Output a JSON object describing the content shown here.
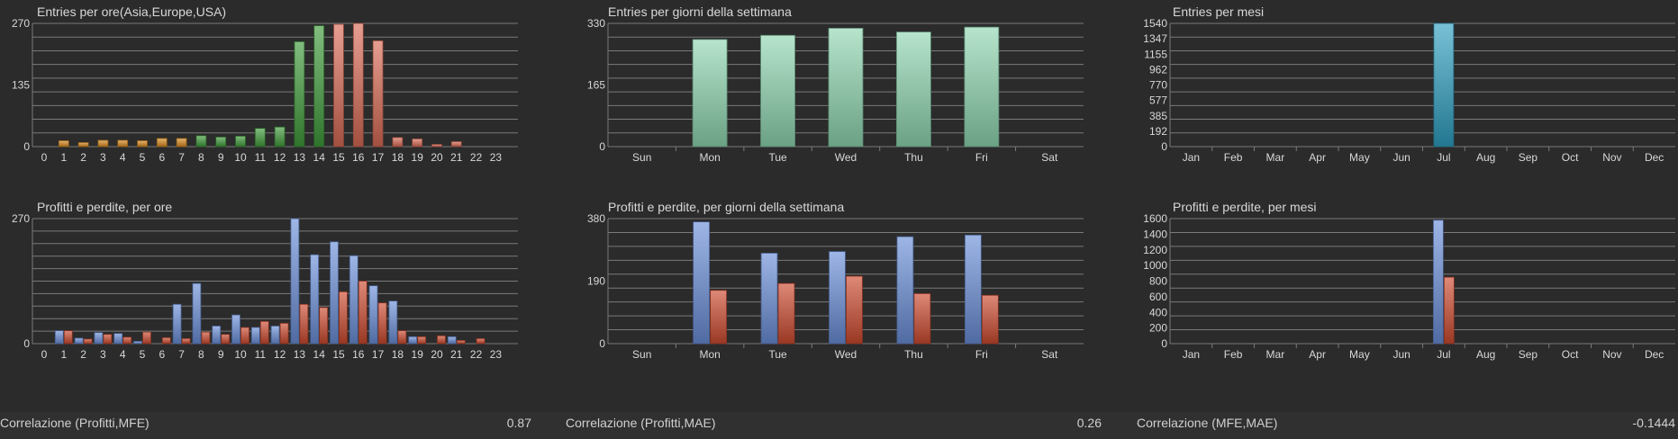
{
  "colors": {
    "orange": "#d98a1f",
    "green": "#3f9a3a",
    "salmon": "#d86a55",
    "mint": "#8fd6b0",
    "teal": "#2f9fc0",
    "blue": "#6a8fd8",
    "red": "#cc4a2f",
    "grid": "#7a7a7a",
    "text": "#d8d8d8"
  },
  "chart_data": [
    {
      "id": "entries_hour",
      "type": "bar",
      "title": "Entries per ore(Asia,Europe,USA)",
      "categories": [
        "0",
        "1",
        "2",
        "3",
        "4",
        "5",
        "6",
        "7",
        "8",
        "9",
        "10",
        "11",
        "12",
        "13",
        "14",
        "15",
        "16",
        "17",
        "18",
        "19",
        "20",
        "21",
        "22",
        "23"
      ],
      "yticks": [
        "0",
        "135",
        "270"
      ],
      "ylim": [
        0,
        270
      ],
      "series": [
        {
          "values": [
            0,
            13,
            9,
            14,
            14,
            13,
            18,
            18,
            24,
            21,
            23,
            40,
            43,
            230,
            265,
            268,
            270,
            232,
            20,
            17,
            5,
            11,
            0,
            0
          ],
          "colors_by_session": [
            "orange",
            "orange",
            "orange",
            "orange",
            "orange",
            "orange",
            "orange",
            "orange",
            "green",
            "green",
            "green",
            "green",
            "green",
            "green",
            "green",
            "salmon",
            "salmon",
            "salmon",
            "salmon",
            "salmon",
            "salmon",
            "salmon",
            "salmon",
            "salmon"
          ]
        }
      ]
    },
    {
      "id": "entries_weekday",
      "type": "bar",
      "title": "Entries per giorni della settimana",
      "categories": [
        "Sun",
        "Mon",
        "Tue",
        "Wed",
        "Thu",
        "Fri",
        "Sat"
      ],
      "yticks": [
        "0",
        "165",
        "330"
      ],
      "ylim": [
        0,
        330
      ],
      "series": [
        {
          "values": [
            0,
            287,
            298,
            317,
            307,
            320,
            0
          ]
        }
      ]
    },
    {
      "id": "entries_month",
      "type": "bar",
      "title": "Entries per mesi",
      "categories": [
        "Jan",
        "Feb",
        "Mar",
        "Apr",
        "May",
        "Jun",
        "Jul",
        "Aug",
        "Sep",
        "Oct",
        "Nov",
        "Dec"
      ],
      "yticks": [
        "0",
        "192",
        "385",
        "577",
        "770",
        "962",
        "1155",
        "1347",
        "1540"
      ],
      "ylim": [
        0,
        1540
      ],
      "series": [
        {
          "values": [
            0,
            0,
            0,
            0,
            0,
            0,
            1540,
            0,
            0,
            0,
            0,
            0
          ]
        }
      ]
    },
    {
      "id": "pl_hour",
      "type": "bar",
      "title": "Profitti e perdite, per ore",
      "categories": [
        "0",
        "1",
        "2",
        "3",
        "4",
        "5",
        "6",
        "7",
        "8",
        "9",
        "10",
        "11",
        "12",
        "13",
        "14",
        "15",
        "16",
        "17",
        "18",
        "19",
        "20",
        "21",
        "22",
        "23"
      ],
      "yticks": [
        "0",
        "270"
      ],
      "ylim": [
        0,
        270
      ],
      "series": [
        {
          "values": [
            0,
            28,
            12,
            24,
            22,
            5,
            0,
            85,
            130,
            38,
            62,
            35,
            38,
            270,
            192,
            220,
            190,
            125,
            92,
            15,
            0,
            15,
            0,
            0
          ]
        },
        {
          "values": [
            0,
            28,
            10,
            20,
            14,
            25,
            13,
            11,
            25,
            20,
            35,
            48,
            44,
            85,
            78,
            112,
            135,
            88,
            28,
            15,
            17,
            7,
            11,
            0
          ]
        }
      ]
    },
    {
      "id": "pl_weekday",
      "type": "bar",
      "title": "Profitti e perdite, per giorni della settimana",
      "categories": [
        "Sun",
        "Mon",
        "Tue",
        "Wed",
        "Thu",
        "Fri",
        "Sat"
      ],
      "yticks": [
        "0",
        "190",
        "380"
      ],
      "ylim": [
        0,
        380
      ],
      "series": [
        {
          "values": [
            0,
            370,
            275,
            280,
            325,
            330,
            0
          ]
        },
        {
          "values": [
            0,
            162,
            183,
            205,
            152,
            147,
            0
          ]
        }
      ]
    },
    {
      "id": "pl_month",
      "type": "bar",
      "title": "Profitti e perdite, per mesi",
      "categories": [
        "Jan",
        "Feb",
        "Mar",
        "Apr",
        "May",
        "Jun",
        "Jul",
        "Aug",
        "Sep",
        "Oct",
        "Nov",
        "Dec"
      ],
      "yticks": [
        "0",
        "200",
        "400",
        "600",
        "800",
        "1000",
        "1200",
        "1400",
        "1600"
      ],
      "ylim": [
        0,
        1600
      ],
      "series": [
        {
          "values": [
            0,
            0,
            0,
            0,
            0,
            0,
            1580,
            0,
            0,
            0,
            0,
            0
          ]
        },
        {
          "values": [
            0,
            0,
            0,
            0,
            0,
            0,
            850,
            0,
            0,
            0,
            0,
            0
          ]
        }
      ]
    }
  ],
  "correlations": [
    {
      "label": "Correlazione (Profitti,MFE)",
      "value": "0.87"
    },
    {
      "label": "Correlazione (Profitti,MAE)",
      "value": "0.26"
    },
    {
      "label": "Correlazione (MFE,MAE)",
      "value": "-0.1444"
    }
  ]
}
